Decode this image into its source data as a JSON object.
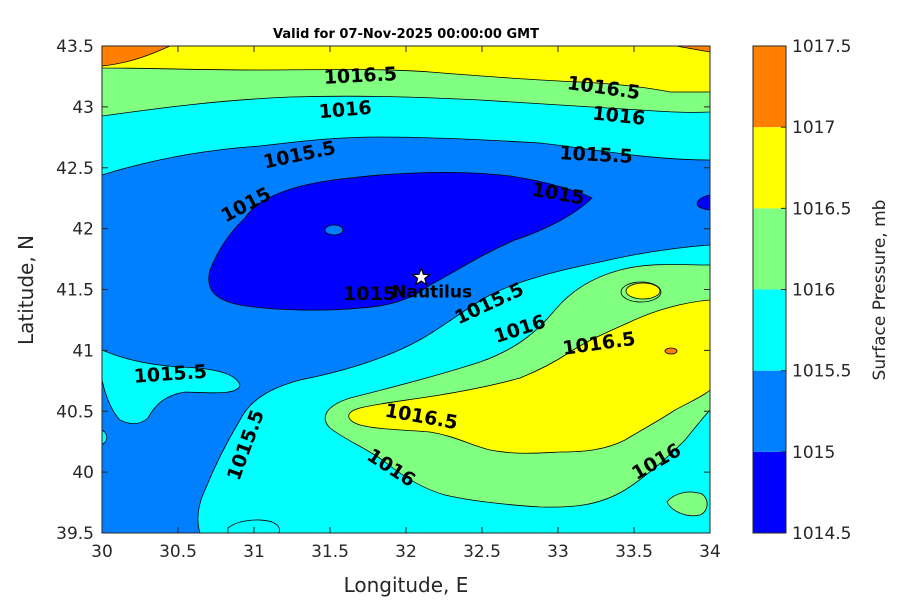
{
  "chart_data": {
    "type": "contour",
    "title": "Valid for 07-Nov-2025 00:00:00 GMT",
    "xlabel": "Longitude, E",
    "ylabel": "Latitude, N",
    "xlim": [
      30,
      34
    ],
    "ylim": [
      39.5,
      43.5
    ],
    "xticks": [
      "30",
      "30.5",
      "31",
      "31.5",
      "32",
      "32.5",
      "33",
      "33.5",
      "34"
    ],
    "yticks": [
      "39.5",
      "40",
      "40.5",
      "41",
      "41.5",
      "42",
      "42.5",
      "43",
      "43.5"
    ],
    "colorbar": {
      "label": "Surface Pressure, mb",
      "levels": [
        1014.5,
        1015,
        1015.5,
        1016,
        1016.5,
        1017,
        1017.5
      ],
      "tick_labels": [
        "1014.5",
        "1015",
        "1015.5",
        "1016",
        "1016.5",
        "1017",
        "1017.5"
      ],
      "colors": [
        "#0000ff",
        "#0080ff",
        "#00ffff",
        "#80ff80",
        "#ffff00",
        "#ff8000",
        "#ff0000"
      ]
    },
    "contour_labels": [
      {
        "text": "1016.5",
        "lon": 31.7,
        "lat": 43.25,
        "angle": -3
      },
      {
        "text": "1016.5",
        "lon": 33.3,
        "lat": 43.15,
        "angle": 8
      },
      {
        "text": "1016",
        "lon": 31.6,
        "lat": 42.97,
        "angle": -5
      },
      {
        "text": "1016",
        "lon": 33.4,
        "lat": 42.92,
        "angle": 6
      },
      {
        "text": "1015.5",
        "lon": 31.3,
        "lat": 42.6,
        "angle": -12
      },
      {
        "text": "1015.5",
        "lon": 33.25,
        "lat": 42.6,
        "angle": 3
      },
      {
        "text": "1015",
        "lon": 30.95,
        "lat": 42.19,
        "angle": -28
      },
      {
        "text": "1015",
        "lon": 33.0,
        "lat": 42.28,
        "angle": 10
      },
      {
        "text": "1015",
        "lon": 31.76,
        "lat": 41.46,
        "angle": 0
      },
      {
        "text": "1015.5",
        "lon": 32.55,
        "lat": 41.38,
        "angle": -25
      },
      {
        "text": "1016",
        "lon": 32.75,
        "lat": 41.17,
        "angle": -18
      },
      {
        "text": "1016.5",
        "lon": 33.27,
        "lat": 41.05,
        "angle": -8
      },
      {
        "text": "1015.5",
        "lon": 30.45,
        "lat": 40.8,
        "angle": -4
      },
      {
        "text": "1016.5",
        "lon": 32.1,
        "lat": 40.45,
        "angle": 10
      },
      {
        "text": "1015.5",
        "lon": 30.95,
        "lat": 40.22,
        "angle": -70
      },
      {
        "text": "1016",
        "lon": 31.9,
        "lat": 40.03,
        "angle": 33
      },
      {
        "text": "1016",
        "lon": 33.65,
        "lat": 40.08,
        "angle": -30
      }
    ],
    "marker": {
      "label": "Nautilus",
      "lon": 32.1,
      "lat": 41.6,
      "symbol": "star"
    }
  }
}
